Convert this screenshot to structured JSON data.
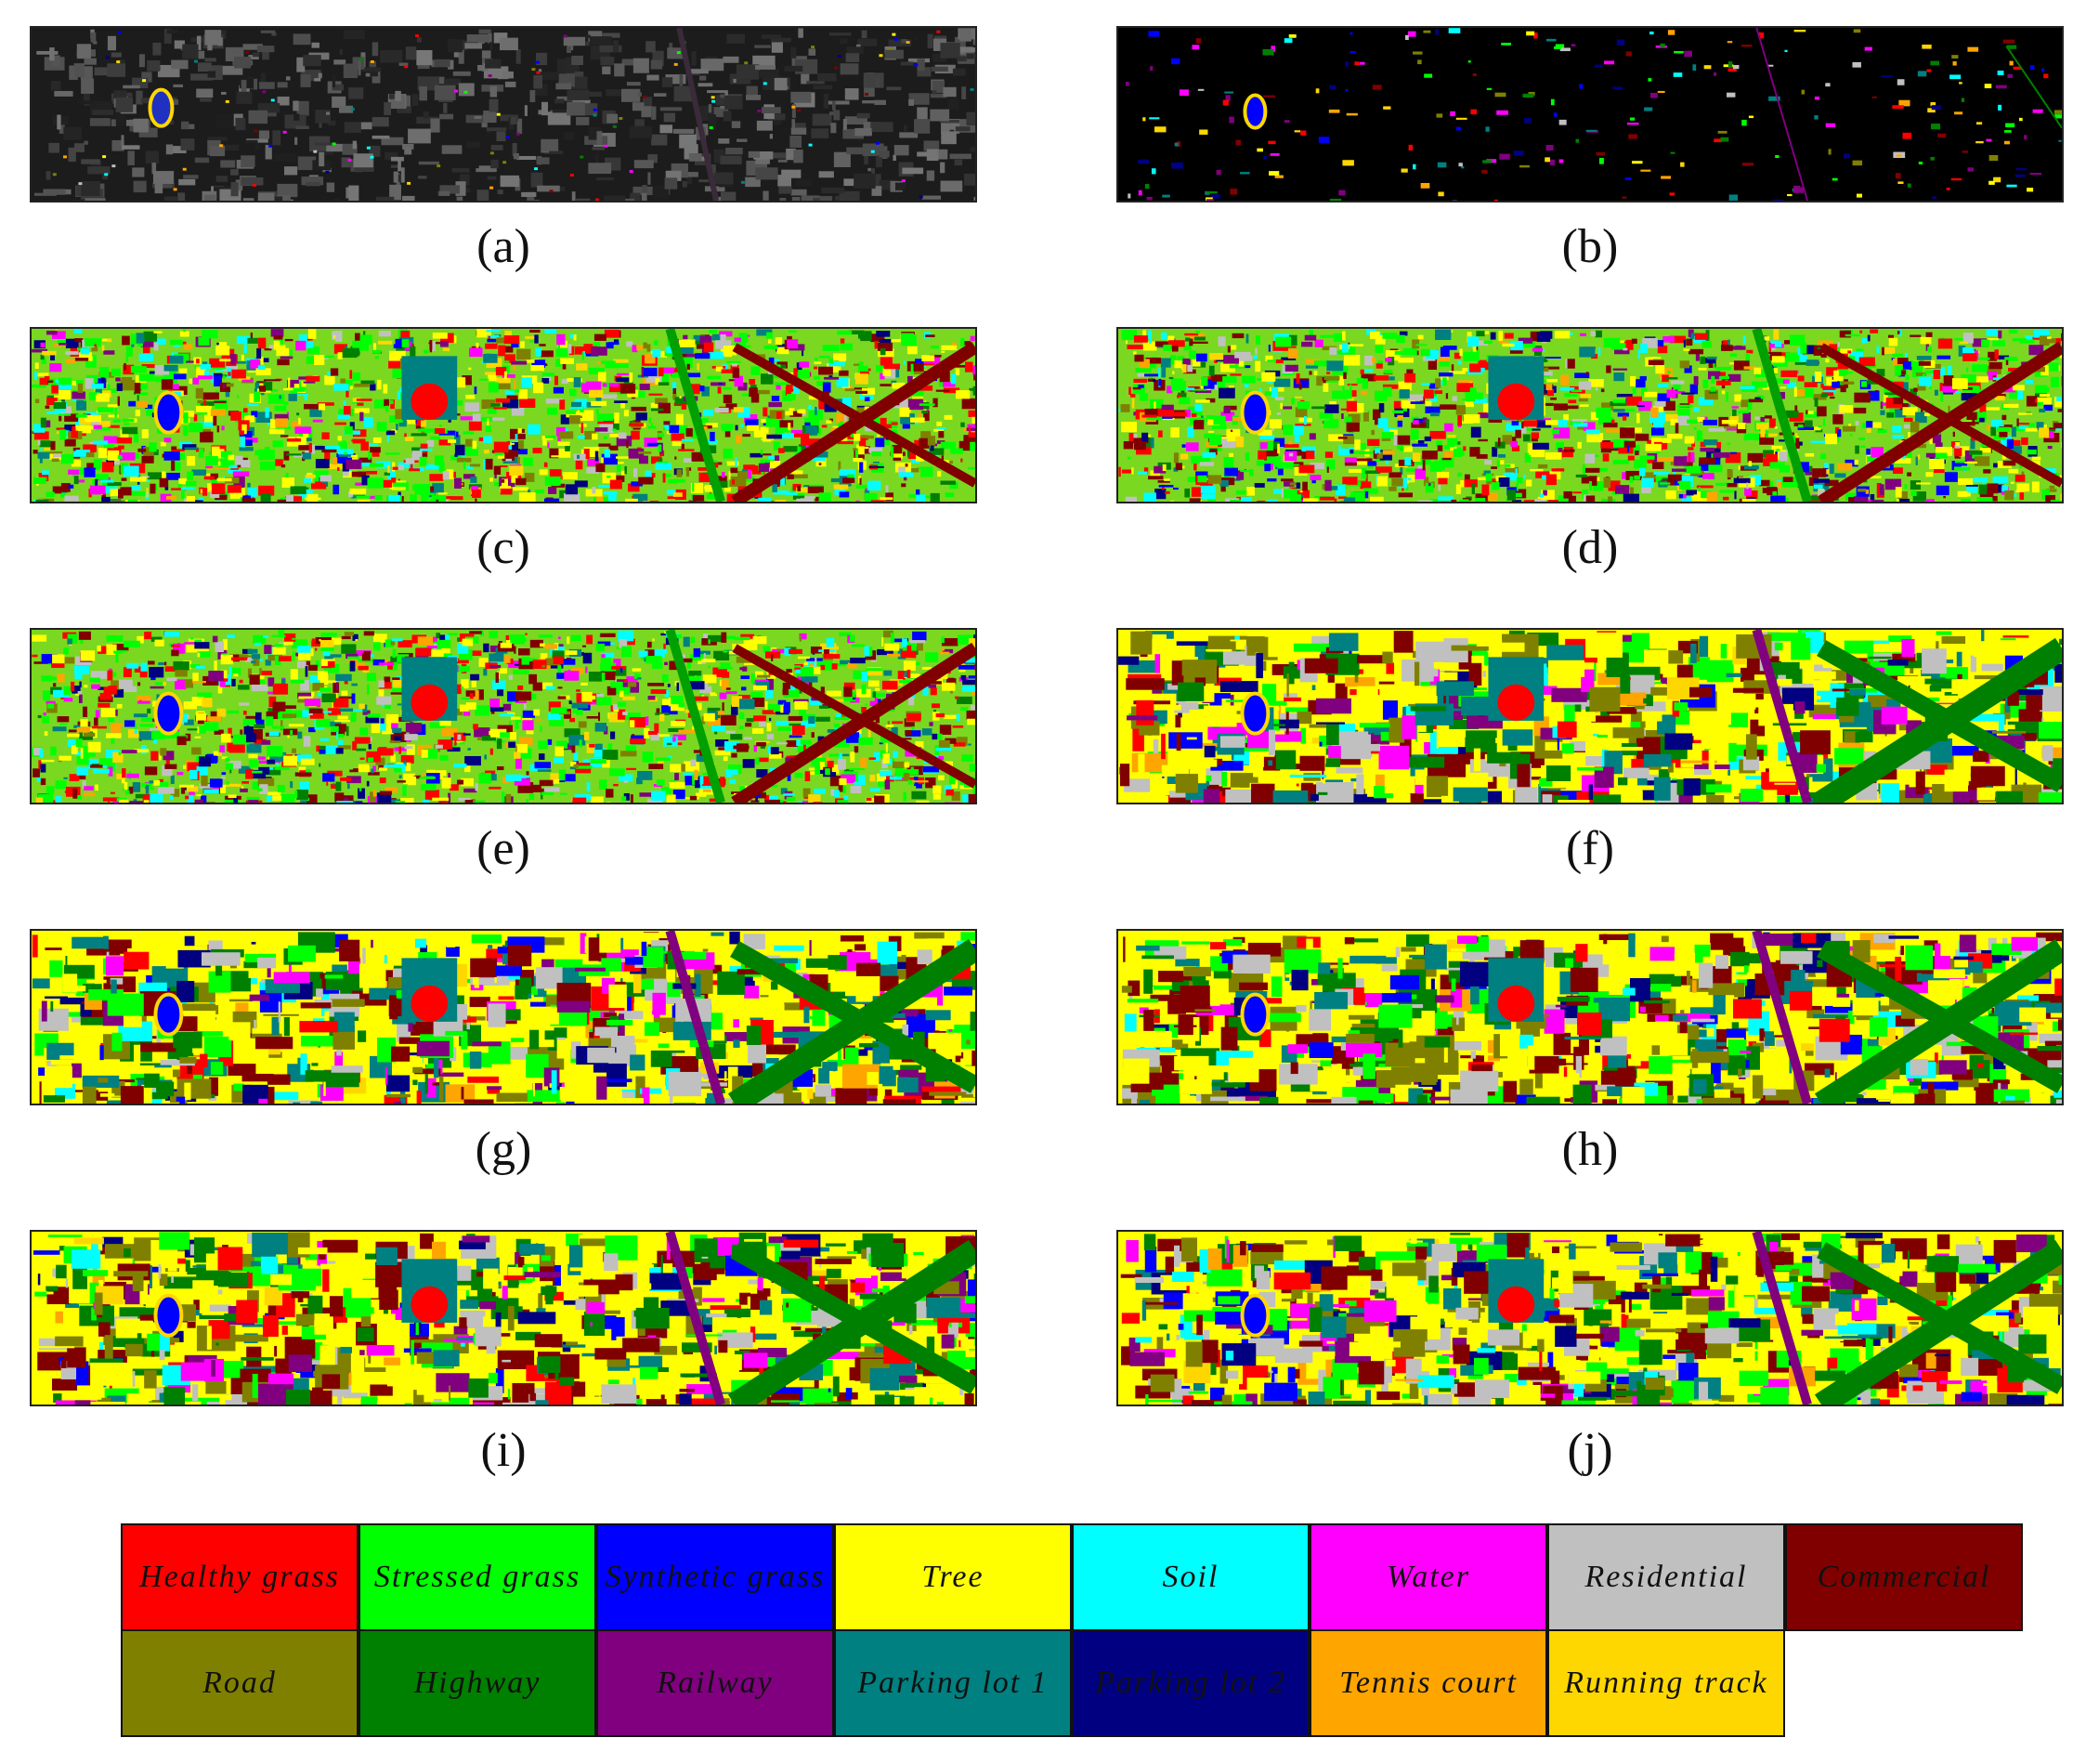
{
  "panels": [
    {
      "id": "a",
      "caption": "(a)",
      "style": "dark-rgb"
    },
    {
      "id": "b",
      "caption": "(b)",
      "style": "ground-truth"
    },
    {
      "id": "c",
      "caption": "(c)",
      "style": "classified-mixed"
    },
    {
      "id": "d",
      "caption": "(d)",
      "style": "classified-mixed"
    },
    {
      "id": "e",
      "caption": "(e)",
      "style": "classified-mixed"
    },
    {
      "id": "f",
      "caption": "(f)",
      "style": "classified-smooth"
    },
    {
      "id": "g",
      "caption": "(g)",
      "style": "classified-smooth"
    },
    {
      "id": "h",
      "caption": "(h)",
      "style": "classified-smooth"
    },
    {
      "id": "i",
      "caption": "(i)",
      "style": "classified-smooth"
    },
    {
      "id": "j",
      "caption": "(j)",
      "style": "classified-smooth"
    }
  ],
  "legend": [
    {
      "label": "Healthy grass",
      "color": "#ff0000"
    },
    {
      "label": "Stressed grass",
      "color": "#00ff00"
    },
    {
      "label": "Synthetic grass",
      "color": "#0000ff"
    },
    {
      "label": "Tree",
      "color": "#ffff00"
    },
    {
      "label": "Soil",
      "color": "#00ffff"
    },
    {
      "label": "Water",
      "color": "#ff00ff"
    },
    {
      "label": "Residential",
      "color": "#c0c0c0"
    },
    {
      "label": "Commercial",
      "color": "#800000"
    },
    {
      "label": "Road",
      "color": "#808000"
    },
    {
      "label": "Highway",
      "color": "#008000"
    },
    {
      "label": "Railway",
      "color": "#800080"
    },
    {
      "label": "Parking lot 1",
      "color": "#008080"
    },
    {
      "label": "Parking lot 2",
      "color": "#000080"
    },
    {
      "label": "Tennis court",
      "color": "#ffa500"
    },
    {
      "label": "Running track",
      "color": "#ffd700"
    }
  ]
}
